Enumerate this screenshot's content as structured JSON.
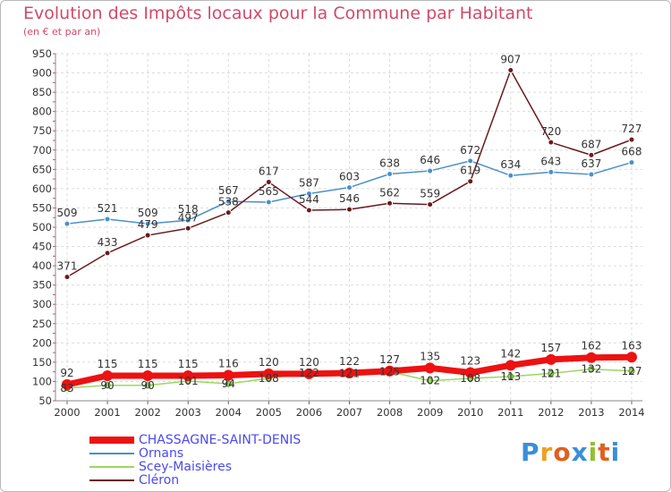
{
  "chart_data": {
    "type": "line",
    "title": "Evolution des Impôts locaux pour la Commune par Habitant",
    "subtitle": "(en € et par an)",
    "x": [
      "2000",
      "2001",
      "2002",
      "2003",
      "2004",
      "2005",
      "2006",
      "2007",
      "2008",
      "2009",
      "2010",
      "2011",
      "2012",
      "2013",
      "2014"
    ],
    "yticks": [
      "50",
      "100",
      "150",
      "200",
      "250",
      "300",
      "350",
      "400",
      "450",
      "500",
      "550",
      "600",
      "650",
      "700",
      "750",
      "800",
      "850",
      "900",
      "950"
    ],
    "ylim": [
      50,
      950
    ],
    "series": [
      {
        "name": "Ornans",
        "color": "#4a90c8",
        "values": [
          509,
          521,
          509,
          518,
          567,
          565,
          587,
          603,
          638,
          646,
          672,
          634,
          643,
          637,
          668
        ]
      },
      {
        "name": "Cléron",
        "color": "#6a1a1e",
        "values": [
          371,
          433,
          479,
          497,
          538,
          617,
          544,
          546,
          562,
          559,
          619,
          907,
          720,
          687,
          727
        ]
      },
      {
        "name": "Scey-Maisières",
        "color": "#9ad860",
        "values": [
          83,
          90,
          90,
          101,
          94,
          108,
          122,
          121,
          125,
          102,
          108,
          113,
          121,
          132,
          127
        ]
      },
      {
        "name": "CHASSAGNE-SAINT-DENIS",
        "color": "#ee1111",
        "values": [
          92,
          115,
          115,
          115,
          116,
          120,
          120,
          122,
          127,
          135,
          123,
          142,
          157,
          162,
          163
        ]
      }
    ],
    "legend": [
      "CHASSAGNE-SAINT-DENIS",
      "Ornans",
      "Scey-Maisières",
      "Cléron"
    ]
  },
  "logo": {
    "letters": [
      "P",
      "r",
      "o",
      "x",
      "i",
      "t",
      "i"
    ]
  }
}
